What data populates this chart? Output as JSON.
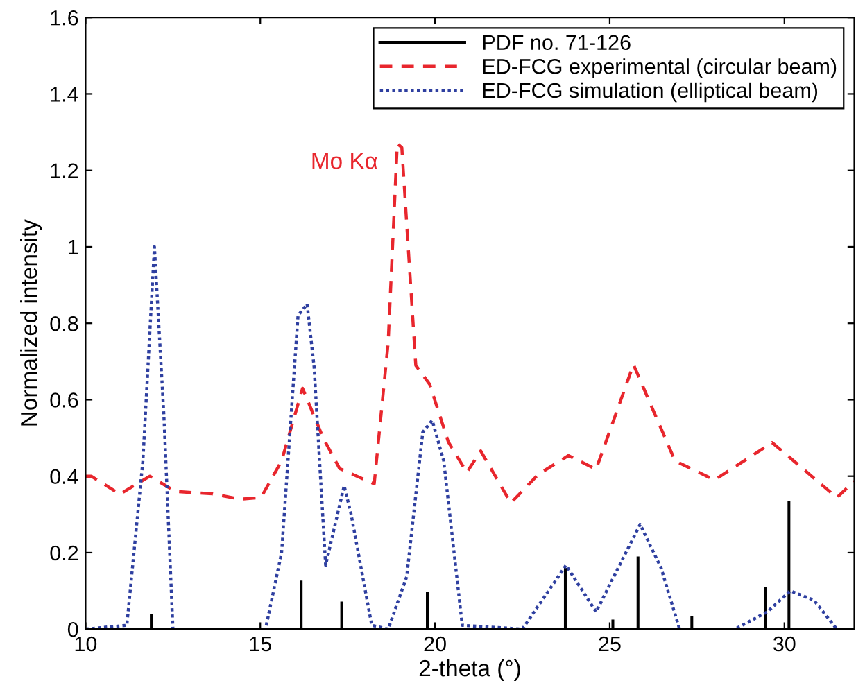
{
  "chart_data": {
    "type": "line",
    "xlabel": "2-theta (°)",
    "ylabel": "Normalized intensity",
    "xlim": [
      10,
      32
    ],
    "ylim": [
      0,
      1.6
    ],
    "xticks": [
      10,
      15,
      20,
      25,
      30
    ],
    "yticks": [
      0,
      0.2,
      0.4,
      0.6,
      0.8,
      1,
      1.2,
      1.4,
      1.6
    ],
    "grid": false,
    "legend": "top right",
    "annotations": [
      {
        "text": "Mo Kα",
        "x": 18.92,
        "y": 1.27
      }
    ],
    "series": [
      {
        "name": "PDF no. 71-126",
        "type": "bar",
        "color": "#000000",
        "x": [
          11.88,
          16.17,
          17.33,
          19.78,
          23.73,
          25.09,
          25.81,
          27.35,
          29.46,
          30.13
        ],
        "values": [
          0.04,
          0.127,
          0.072,
          0.098,
          0.16,
          0.025,
          0.19,
          0.035,
          0.11,
          0.336
        ]
      },
      {
        "name": "ED-FCG experimental (circular beam)",
        "line_style": "dashed",
        "color": "#e8262d",
        "x": [
          10,
          10.16,
          10.98,
          11.84,
          12.57,
          13.63,
          14.42,
          15.02,
          15.61,
          16.21,
          16.8,
          17.27,
          18.26,
          18.66,
          18.92,
          19.05,
          19.45,
          19.85,
          20.38,
          20.91,
          21.31,
          22.17,
          22.96,
          23.82,
          24.61,
          25.68,
          26.87,
          28.0,
          29.65,
          31.5,
          32
        ],
        "values": [
          0.4,
          0.4,
          0.353,
          0.4,
          0.36,
          0.354,
          0.34,
          0.344,
          0.44,
          0.63,
          0.5,
          0.42,
          0.38,
          0.75,
          1.27,
          1.26,
          0.69,
          0.64,
          0.49,
          0.41,
          0.466,
          0.33,
          0.405,
          0.454,
          0.418,
          0.692,
          0.44,
          0.39,
          0.488,
          0.344,
          0.387
        ]
      },
      {
        "name": "ED-FCG simulation (elliptical beam)",
        "line_style": "dotted",
        "color": "#2e3fa0",
        "x": [
          10,
          11.18,
          11.64,
          11.97,
          12.24,
          12.5,
          15.15,
          15.61,
          16.08,
          16.34,
          16.54,
          16.87,
          17.4,
          17.6,
          18.19,
          18.66,
          19.19,
          19.65,
          19.92,
          20.25,
          20.78,
          22.5,
          23.75,
          24.61,
          25.87,
          26.47,
          27.0,
          28.59,
          29.51,
          30.17,
          30.84,
          31.5,
          32
        ],
        "values": [
          0,
          0.01,
          0.44,
          1.0,
          0.56,
          0,
          0,
          0.2,
          0.82,
          0.85,
          0.686,
          0.167,
          0.375,
          0.3,
          0.01,
          0,
          0.137,
          0.515,
          0.546,
          0.44,
          0.01,
          0,
          0.167,
          0.045,
          0.274,
          0.16,
          0,
          0,
          0.045,
          0.1,
          0.076,
          0,
          0
        ]
      }
    ]
  }
}
